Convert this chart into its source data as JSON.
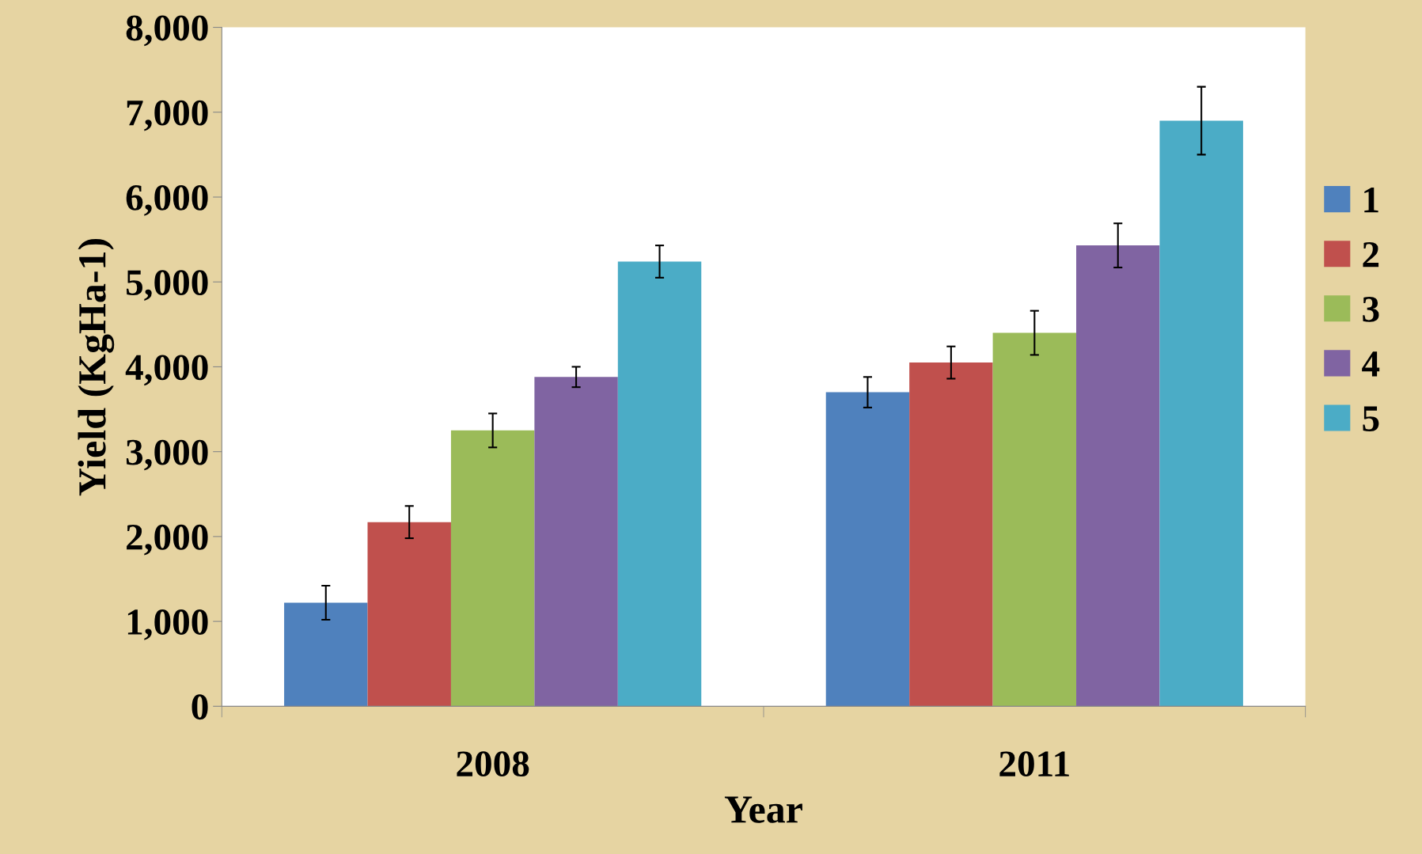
{
  "chart_data": {
    "type": "bar",
    "xlabel": "Year",
    "ylabel": "Yield (KgHa-1)",
    "categories": [
      "2008",
      "2011"
    ],
    "series": [
      {
        "name": "1",
        "color": "#4f81bd",
        "values": [
          1220,
          3700
        ],
        "errors": [
          200,
          180
        ]
      },
      {
        "name": "2",
        "color": "#c0504d",
        "values": [
          2170,
          4050
        ],
        "errors": [
          190,
          190
        ]
      },
      {
        "name": "3",
        "color": "#9bbb59",
        "values": [
          3250,
          4400
        ],
        "errors": [
          200,
          260
        ]
      },
      {
        "name": "4",
        "color": "#8064a2",
        "values": [
          3880,
          5430
        ],
        "errors": [
          120,
          260
        ]
      },
      {
        "name": "5",
        "color": "#4bacc6",
        "values": [
          5240,
          6900
        ],
        "errors": [
          190,
          400
        ]
      }
    ],
    "ylim": [
      0,
      8000
    ],
    "yticks": [
      {
        "value": 0,
        "label": "0"
      },
      {
        "value": 1000,
        "label": "1,000"
      },
      {
        "value": 2000,
        "label": "2,000"
      },
      {
        "value": 3000,
        "label": "3,000"
      },
      {
        "value": 4000,
        "label": "4,000"
      },
      {
        "value": 5000,
        "label": "5,000"
      },
      {
        "value": 6000,
        "label": "6,000"
      },
      {
        "value": 7000,
        "label": "7,000"
      },
      {
        "value": 8000,
        "label": "8,000"
      }
    ],
    "grid": false,
    "legend": "right"
  }
}
